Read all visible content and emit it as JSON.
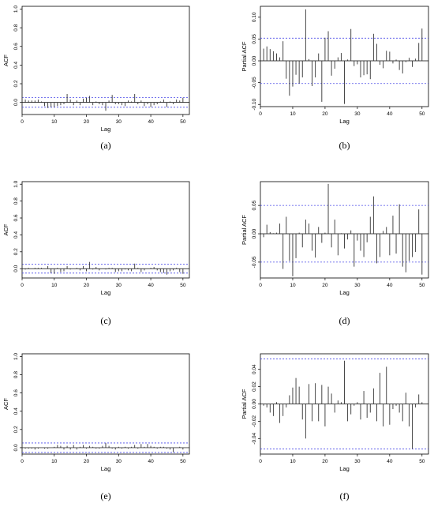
{
  "chart_data": [
    {
      "type": "bar",
      "caption": "(a)",
      "xlabel": "Lag",
      "ylabel": "ACF",
      "xlim": [
        0,
        52
      ],
      "ylim": [
        -0.13,
        1.03
      ],
      "xticks": [
        0,
        10,
        20,
        30,
        40,
        50
      ],
      "yticks": [
        0.0,
        0.2,
        0.4,
        0.6,
        0.8,
        1.0
      ],
      "ytick_labels": [
        "0.0",
        "0.2",
        "0.4",
        "0.6",
        "0.8",
        "1.0"
      ],
      "conf_band": 0.052,
      "x": [
        0,
        1,
        2,
        3,
        4,
        5,
        6,
        7,
        8,
        9,
        10,
        11,
        12,
        13,
        14,
        15,
        16,
        17,
        18,
        19,
        20,
        21,
        22,
        23,
        24,
        25,
        26,
        27,
        28,
        29,
        30,
        31,
        32,
        33,
        34,
        35,
        36,
        37,
        38,
        39,
        40,
        41,
        42,
        43,
        44,
        45,
        46,
        47,
        48,
        49,
        50
      ],
      "values": [
        1.0,
        0.03,
        0.02,
        0.02,
        0.02,
        0.03,
        0.01,
        -0.04,
        -0.06,
        -0.05,
        -0.05,
        -0.04,
        -0.03,
        -0.02,
        0.09,
        0.03,
        -0.03,
        0.02,
        -0.03,
        0.04,
        0.05,
        0.07,
        -0.03,
        0.01,
        -0.02,
        -0.03,
        -0.09,
        0.02,
        0.08,
        -0.02,
        -0.02,
        -0.03,
        -0.04,
        0.02,
        0.01,
        0.09,
        -0.02,
        0.02,
        -0.04,
        -0.02,
        -0.05,
        -0.03,
        -0.02,
        0.01,
        0.03,
        -0.05,
        0.01,
        -0.02,
        0.03,
        0.02,
        0.05
      ]
    },
    {
      "type": "bar",
      "caption": "(b)",
      "xlabel": "Lag",
      "ylabel": "Partial ACF",
      "xlim": [
        0,
        52
      ],
      "ylim": [
        -0.105,
        0.125
      ],
      "xticks": [
        0,
        10,
        20,
        30,
        40,
        50
      ],
      "yticks": [
        -0.1,
        -0.05,
        0.0,
        0.05,
        0.1
      ],
      "ytick_labels": [
        "-0.10",
        "-0.05",
        "0.00",
        "0.05",
        "0.10"
      ],
      "conf_band": 0.052,
      "x": [
        1,
        2,
        3,
        4,
        5,
        6,
        7,
        8,
        9,
        10,
        11,
        12,
        13,
        14,
        15,
        16,
        17,
        18,
        19,
        20,
        21,
        22,
        23,
        24,
        25,
        26,
        27,
        28,
        29,
        30,
        31,
        32,
        33,
        34,
        35,
        36,
        37,
        38,
        39,
        40,
        41,
        42,
        43,
        44,
        45,
        46,
        47,
        48,
        49,
        50
      ],
      "values": [
        0.028,
        0.033,
        0.027,
        0.022,
        0.017,
        0.008,
        0.045,
        -0.041,
        -0.08,
        -0.059,
        -0.032,
        -0.052,
        -0.038,
        0.118,
        0.004,
        -0.058,
        -0.038,
        0.017,
        -0.094,
        0.053,
        0.068,
        -0.034,
        -0.018,
        0.008,
        0.018,
        -0.099,
        0.003,
        0.073,
        -0.012,
        -0.008,
        -0.038,
        -0.033,
        -0.031,
        -0.042,
        0.062,
        0.039,
        -0.009,
        -0.017,
        0.023,
        0.021,
        -0.006,
        0.003,
        -0.021,
        -0.029,
        -0.003,
        0.007,
        -0.014,
        0.005,
        0.041,
        0.074
      ]
    },
    {
      "type": "bar",
      "caption": "(c)",
      "xlabel": "Lag",
      "ylabel": "ACF",
      "xlim": [
        0,
        52
      ],
      "ylim": [
        -0.11,
        1.03
      ],
      "xticks": [
        0,
        10,
        20,
        30,
        40,
        50
      ],
      "yticks": [
        0.0,
        0.2,
        0.4,
        0.6,
        0.8,
        1.0
      ],
      "ytick_labels": [
        "0.0",
        "0.2",
        "0.4",
        "0.6",
        "0.8",
        "1.0"
      ],
      "conf_band": 0.052,
      "x": [
        0,
        1,
        2,
        3,
        4,
        5,
        6,
        7,
        8,
        9,
        10,
        11,
        12,
        13,
        14,
        15,
        16,
        17,
        18,
        19,
        20,
        21,
        22,
        23,
        24,
        25,
        26,
        27,
        28,
        29,
        30,
        31,
        32,
        33,
        34,
        35,
        36,
        37,
        38,
        39,
        40,
        41,
        42,
        43,
        44,
        45,
        46,
        47,
        48,
        49,
        50
      ],
      "values": [
        1.0,
        -0.01,
        0.01,
        0.0,
        0.01,
        0.01,
        0.01,
        0.0,
        0.03,
        -0.05,
        -0.06,
        0.01,
        -0.04,
        -0.03,
        0.03,
        -0.01,
        0.0,
        0.01,
        -0.02,
        0.03,
        -0.03,
        0.08,
        -0.01,
        0.02,
        -0.02,
        0.0,
        -0.01,
        0.01,
        0.01,
        -0.04,
        -0.03,
        -0.03,
        -0.01,
        -0.02,
        -0.03,
        0.06,
        0.01,
        -0.04,
        -0.02,
        0.0,
        0.01,
        0.02,
        -0.02,
        -0.04,
        -0.05,
        -0.07,
        -0.03,
        -0.02,
        0.01,
        -0.04,
        -0.06
      ]
    },
    {
      "type": "bar",
      "caption": "(d)",
      "xlabel": "Lag",
      "ylabel": "Partial ACF",
      "xlim": [
        0,
        52
      ],
      "ylim": [
        -0.078,
        0.092
      ],
      "xticks": [
        0,
        10,
        20,
        30,
        40,
        50
      ],
      "yticks": [
        -0.05,
        0.0,
        0.05
      ],
      "ytick_labels": [
        "-0.05",
        "0.00",
        "0.05"
      ],
      "conf_band": 0.05,
      "x": [
        1,
        2,
        3,
        4,
        5,
        6,
        7,
        8,
        9,
        10,
        11,
        12,
        13,
        14,
        15,
        16,
        17,
        18,
        19,
        20,
        21,
        22,
        23,
        24,
        25,
        26,
        27,
        28,
        29,
        30,
        31,
        32,
        33,
        34,
        35,
        36,
        37,
        38,
        39,
        40,
        41,
        42,
        43,
        44,
        45,
        46,
        47,
        48,
        49,
        50
      ],
      "values": [
        -0.006,
        0.016,
        0.003,
        0.001,
        0.002,
        0.018,
        -0.062,
        0.03,
        -0.048,
        -0.075,
        -0.043,
        0.002,
        -0.024,
        0.025,
        0.018,
        -0.03,
        -0.042,
        0.012,
        -0.016,
        0.002,
        0.088,
        -0.024,
        0.025,
        -0.038,
        0.001,
        -0.026,
        -0.01,
        0.006,
        -0.058,
        -0.012,
        -0.03,
        -0.041,
        -0.015,
        0.03,
        0.066,
        -0.052,
        -0.041,
        0.005,
        0.012,
        -0.038,
        0.032,
        -0.035,
        0.052,
        -0.058,
        -0.068,
        -0.048,
        -0.041,
        -0.032,
        0.043,
        -0.072
      ]
    },
    {
      "type": "bar",
      "caption": "(e)",
      "xlabel": "Lag",
      "ylabel": "ACF",
      "xlim": [
        0,
        52
      ],
      "ylim": [
        -0.07,
        1.03
      ],
      "xticks": [
        0,
        10,
        20,
        30,
        40,
        50
      ],
      "yticks": [
        0.0,
        0.2,
        0.4,
        0.6,
        0.8,
        1.0
      ],
      "ytick_labels": [
        "0.0",
        "0.2",
        "0.4",
        "0.6",
        "0.8",
        "1.0"
      ],
      "conf_band": 0.052,
      "x": [
        0,
        1,
        2,
        3,
        4,
        5,
        6,
        7,
        8,
        9,
        10,
        11,
        12,
        13,
        14,
        15,
        16,
        17,
        18,
        19,
        20,
        21,
        22,
        23,
        24,
        25,
        26,
        27,
        28,
        29,
        30,
        31,
        32,
        33,
        34,
        35,
        36,
        37,
        38,
        39,
        40,
        41,
        42,
        43,
        44,
        45,
        46,
        47,
        48,
        49,
        50
      ],
      "values": [
        1.0,
        -0.01,
        -0.01,
        -0.01,
        -0.02,
        -0.01,
        0.0,
        -0.01,
        -0.01,
        0.0,
        0.01,
        0.03,
        0.02,
        -0.02,
        0.02,
        -0.02,
        0.03,
        -0.02,
        0.01,
        0.03,
        -0.01,
        0.02,
        0.01,
        -0.01,
        -0.01,
        0.02,
        0.05,
        0.02,
        -0.01,
        -0.02,
        0.01,
        -0.01,
        0.01,
        -0.01,
        0.01,
        0.03,
        -0.01,
        0.04,
        0.01,
        0.04,
        0.02,
        0.01,
        -0.01,
        0.01,
        0.01,
        -0.01,
        -0.02,
        -0.05,
        0.0,
        0.01,
        -0.02
      ]
    },
    {
      "type": "bar",
      "caption": "(f)",
      "xlabel": "Lag",
      "ylabel": "Partial ACF",
      "xlim": [
        0,
        52
      ],
      "ylim": [
        -0.058,
        0.058
      ],
      "xticks": [
        0,
        10,
        20,
        30,
        40,
        50
      ],
      "yticks": [
        -0.04,
        -0.02,
        0.0,
        0.02,
        0.04
      ],
      "ytick_labels": [
        "-0.04",
        "-0.02",
        "0.00",
        "0.02",
        "0.04"
      ],
      "conf_band": 0.052,
      "x": [
        1,
        2,
        3,
        4,
        5,
        6,
        7,
        8,
        9,
        10,
        11,
        12,
        13,
        14,
        15,
        16,
        17,
        18,
        19,
        20,
        21,
        22,
        23,
        24,
        25,
        26,
        27,
        28,
        29,
        30,
        31,
        32,
        33,
        34,
        35,
        36,
        37,
        38,
        39,
        40,
        41,
        42,
        43,
        44,
        45,
        46,
        47,
        48,
        49,
        50
      ],
      "values": [
        -0.002,
        -0.004,
        -0.01,
        -0.014,
        0.002,
        -0.022,
        -0.014,
        -0.004,
        0.01,
        0.019,
        0.03,
        0.02,
        -0.018,
        -0.04,
        0.023,
        -0.02,
        0.024,
        -0.02,
        0.022,
        -0.026,
        0.02,
        0.012,
        -0.01,
        0.004,
        0.002,
        0.05,
        -0.02,
        -0.012,
        -0.002,
        0.002,
        -0.018,
        0.015,
        -0.016,
        -0.01,
        0.018,
        -0.02,
        0.036,
        -0.026,
        0.043,
        -0.024,
        -0.006,
        -0.002,
        -0.01,
        -0.02,
        0.013,
        -0.026,
        -0.052,
        -0.004,
        0.011,
        0.002
      ]
    }
  ]
}
